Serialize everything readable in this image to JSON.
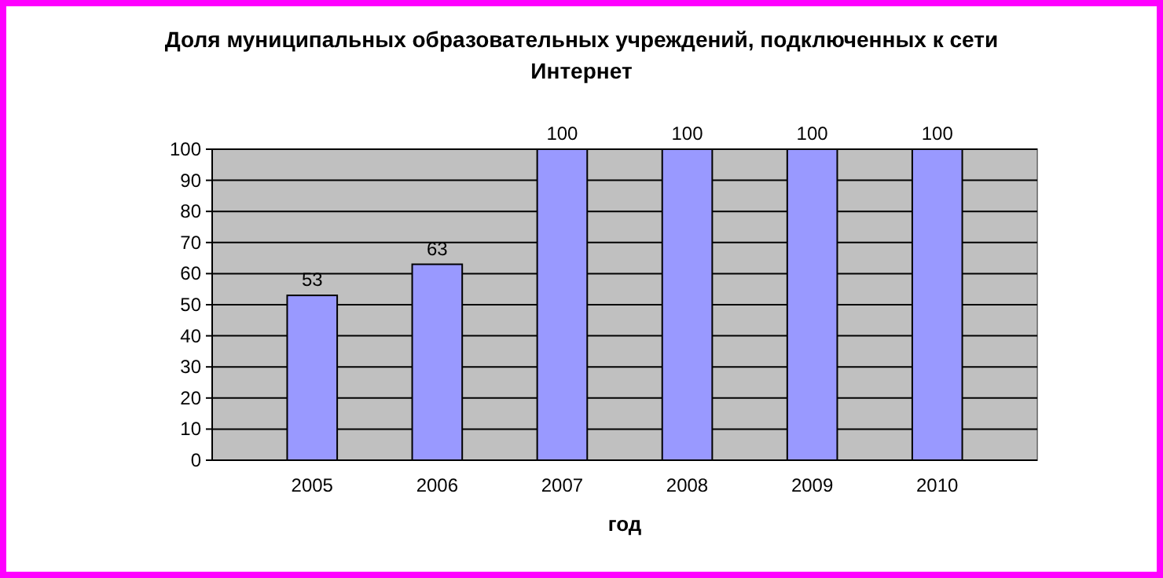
{
  "chart_data": {
    "type": "bar",
    "title": "Доля муниципальных образовательных учреждений, подключенных к сети Интернет",
    "xlabel": "год",
    "categories": [
      "2005",
      "2006",
      "2007",
      "2008",
      "2009",
      "2010"
    ],
    "values": [
      53,
      63,
      100,
      100,
      100,
      100
    ],
    "color": "#9999ff",
    "data_labels": true,
    "ylim": [
      0,
      100
    ],
    "yticks": [
      0,
      10,
      20,
      30,
      40,
      50,
      60,
      70,
      80,
      90,
      100
    ],
    "grid": "y"
  }
}
